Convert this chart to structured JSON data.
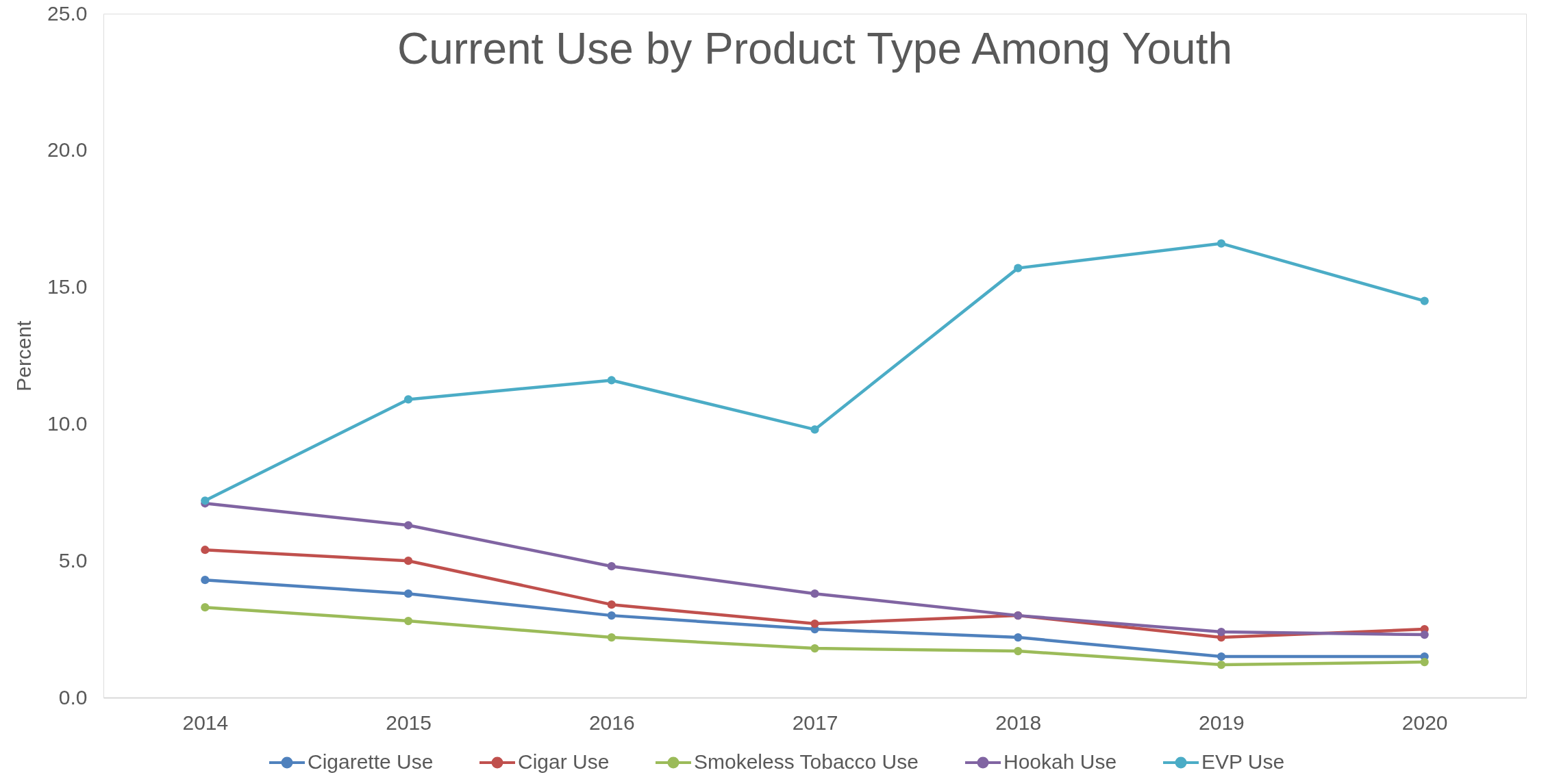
{
  "chart_data": {
    "type": "line",
    "title": "Current Use by Product Type Among Youth",
    "ylabel": "Percent",
    "categories": [
      "2014",
      "2015",
      "2016",
      "2017",
      "2018",
      "2019",
      "2020"
    ],
    "series": [
      {
        "name": "Cigarette Use",
        "color": "#4f81bd",
        "values": [
          4.3,
          3.8,
          3.0,
          2.5,
          2.2,
          1.5,
          1.5
        ]
      },
      {
        "name": "Cigar Use",
        "color": "#c0504d",
        "values": [
          5.4,
          5.0,
          3.4,
          2.7,
          3.0,
          2.2,
          2.5
        ]
      },
      {
        "name": "Smokeless Tobacco Use",
        "color": "#9bbb59",
        "values": [
          3.3,
          2.8,
          2.2,
          1.8,
          1.7,
          1.2,
          1.3
        ]
      },
      {
        "name": "Hookah Use",
        "color": "#8064a2",
        "values": [
          7.1,
          6.3,
          4.8,
          3.8,
          3.0,
          2.4,
          2.3
        ]
      },
      {
        "name": "EVP Use",
        "color": "#4bacc6",
        "values": [
          7.2,
          10.9,
          11.6,
          9.8,
          15.7,
          16.6,
          14.5
        ]
      }
    ],
    "ylim": [
      0,
      25
    ],
    "yticks": [
      {
        "value": 0,
        "label": "0.0"
      },
      {
        "value": 5,
        "label": "5.0"
      },
      {
        "value": 10,
        "label": "10.0"
      },
      {
        "value": 15,
        "label": "15.0"
      },
      {
        "value": 20,
        "label": "20.0"
      },
      {
        "value": 25,
        "label": "25.0"
      }
    ],
    "grid": false,
    "legend": "bottom",
    "marker": "circle",
    "line_style": "solid"
  }
}
